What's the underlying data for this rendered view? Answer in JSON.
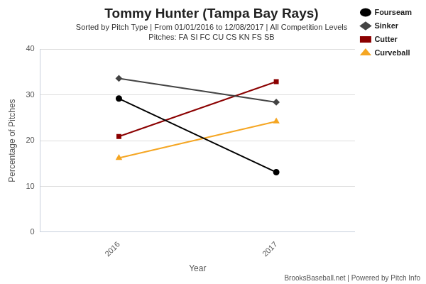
{
  "chart_data": {
    "type": "line",
    "title": "Tommy Hunter (Tampa Bay Rays)",
    "subtitle": [
      "Sorted by Pitch Type | From 01/01/2016 to 12/08/2017 | All Competition Levels",
      "Pitches: FA SI FC CU CS KN FS SB"
    ],
    "x_label": "Year",
    "y_label": "Percentage of Pitches",
    "annotations": [
      "BrooksBaseball.net | Powered by Pitch Info"
    ],
    "categories": [
      "2016",
      "2017"
    ],
    "series": [
      {
        "name": "Fourseam",
        "color": "#000000",
        "marker": "circle",
        "values": [
          29.2,
          13.1
        ]
      },
      {
        "name": "Sinker",
        "color": "#444444",
        "marker": "diamond",
        "values": [
          33.6,
          28.4
        ]
      },
      {
        "name": "Cutter",
        "color": "#8b0000",
        "marker": "square",
        "values": [
          20.9,
          32.9
        ]
      },
      {
        "name": "Curveball",
        "color": "#f5a623",
        "marker": "triangle",
        "values": [
          16.2,
          24.2
        ]
      }
    ],
    "ylim": [
      0,
      40
    ],
    "yticks": [
      0,
      10,
      20,
      30,
      40
    ],
    "grid": true,
    "legend": "right"
  }
}
